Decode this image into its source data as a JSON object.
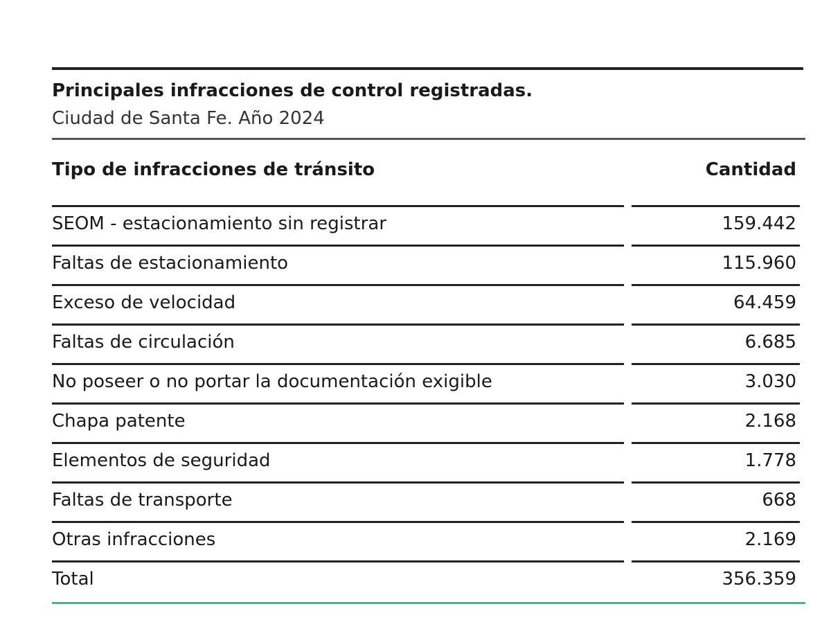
{
  "header": {
    "title": "Principales infracciones de control registradas.",
    "subtitle": "Ciudad de Santa Fe. Año 2024"
  },
  "table": {
    "columns": [
      "Tipo de infracciones de tránsito",
      "Cantidad"
    ],
    "rows": [
      [
        "SEOM - estacionamiento sin registrar",
        "159.442"
      ],
      [
        "Faltas de estacionamiento",
        "115.960"
      ],
      [
        "Exceso de velocidad",
        "64.459"
      ],
      [
        "Faltas de circulación",
        "6.685"
      ],
      [
        "No poseer o no portar la documentación exigible",
        "3.030"
      ],
      [
        "Chapa patente",
        "2.168"
      ],
      [
        "Elementos de seguridad",
        "1.778"
      ],
      [
        "Faltas de transporte",
        "668"
      ],
      [
        "Otras infracciones",
        "2.169"
      ],
      [
        "Total",
        "356.359"
      ]
    ]
  }
}
